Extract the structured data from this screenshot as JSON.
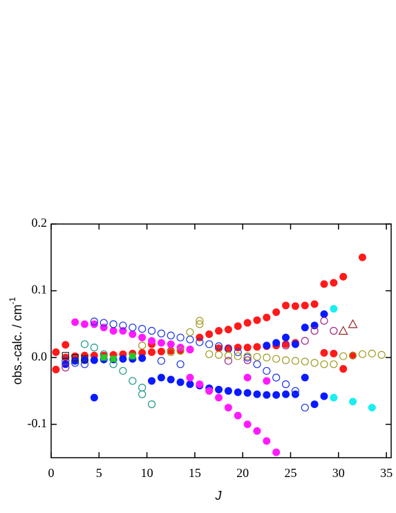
{
  "chart_data": {
    "type": "scatter",
    "x_label": "J",
    "y_label": "obs.-calc. / cm",
    "y_label_sup": "-1",
    "xlim": [
      0,
      35.5
    ],
    "ylim": [
      -0.15,
      0.2
    ],
    "xticks": [
      0,
      5,
      10,
      15,
      20,
      25,
      30,
      35
    ],
    "yticks": [
      -0.1,
      {
        "value": 0,
        "label": "0.0"
      },
      0.1,
      0.2
    ],
    "series": [
      {
        "color": "#ff1a1a",
        "marker": "filled",
        "x": [
          15.5,
          16.5,
          17.5,
          18.5,
          19.5,
          20.5,
          21.5,
          22.5,
          23.5,
          24.5,
          25.5,
          26.5,
          27.5,
          28.5,
          29.5,
          30.5,
          32.5,
          0.5,
          0.5,
          1.5,
          1.5,
          2.5,
          3.5,
          4.5,
          5.5,
          6.5,
          7.5,
          8.5,
          9.5,
          10.5,
          10.5,
          11.5,
          12.5,
          13.5,
          14.5,
          17.5,
          18.5,
          19.5,
          20.5,
          21.5,
          22.5,
          23.5,
          24.5,
          25.5,
          28.5,
          29.5,
          30.5,
          31.5
        ],
        "y": [
          0.03,
          0.035,
          0.04,
          0.042,
          0.047,
          0.052,
          0.056,
          0.06,
          0.068,
          0.078,
          0.077,
          0.078,
          0.08,
          0.11,
          0.112,
          0.121,
          0.15,
          0.008,
          -0.018,
          0.019,
          0.0,
          0.002,
          0.003,
          0.003,
          0.003,
          0.004,
          0.005,
          0.006,
          0.007,
          0.008,
          0.02,
          0.009,
          0.01,
          0.011,
          0.012,
          0.014,
          0.014,
          0.015,
          0.015,
          0.016,
          0.017,
          0.018,
          0.02,
          0.022,
          0.007,
          0.006,
          -0.017,
          0.003
        ]
      },
      {
        "color": "#0a1aff",
        "marker": "filled",
        "x": [
          4.5,
          10.5,
          11.5,
          12.5,
          13.5,
          14.5,
          15.5,
          16.5,
          17.5,
          18.5,
          19.5,
          20.5,
          21.5,
          22.5,
          23.5,
          24.5,
          25.5,
          26.5,
          27.5,
          28.5,
          22.5,
          23.5,
          24.5,
          25.5,
          26.5,
          27.5,
          28.5,
          1.5,
          2.5,
          3.5,
          4.5,
          5.5,
          6.5,
          7.5,
          8.5,
          9.5
        ],
        "y": [
          -0.06,
          -0.035,
          -0.03,
          -0.033,
          -0.037,
          -0.04,
          -0.042,
          -0.046,
          -0.048,
          -0.05,
          -0.052,
          -0.053,
          -0.055,
          -0.056,
          -0.056,
          -0.055,
          -0.055,
          -0.03,
          -0.07,
          -0.058,
          0.018,
          0.022,
          0.03,
          0.02,
          0.045,
          0.048,
          0.065,
          -0.01,
          -0.005,
          -0.004,
          -0.004,
          -0.003,
          -0.003,
          -0.002,
          -0.002,
          -0.001
        ]
      },
      {
        "color": "#ff1aff",
        "marker": "filled",
        "x": [
          2.5,
          3.5,
          4.5,
          5.5,
          6.5,
          7.5,
          8.5,
          9.5,
          10.5,
          11.5,
          12.5,
          13.5,
          14.5,
          14.5,
          15.5,
          16.5,
          17.5,
          18.5,
          19.5,
          20.5,
          21.5,
          22.5,
          23.5,
          20.5,
          22.5
        ],
        "y": [
          0.053,
          0.05,
          0.05,
          0.045,
          0.04,
          0.04,
          0.035,
          0.03,
          0.025,
          0.022,
          0.02,
          0.015,
          0.012,
          -0.03,
          -0.04,
          -0.05,
          -0.06,
          -0.075,
          -0.087,
          -0.1,
          -0.11,
          -0.125,
          -0.142,
          -0.03,
          -0.035
        ]
      },
      {
        "color": "#1a33e6",
        "marker": "open",
        "x": [
          4.5,
          5.5,
          6.5,
          7.5,
          8.5,
          9.5,
          10.5,
          11.5,
          12.5,
          13.5,
          14.5,
          15.5,
          16.5,
          17.5,
          18.5,
          19.5,
          20.5,
          21.5,
          22.5,
          23.5,
          24.5,
          25.5,
          26.5,
          1.5,
          2.5,
          3.5,
          11.5,
          13.5
        ],
        "y": [
          0.054,
          0.052,
          0.05,
          0.048,
          0.045,
          0.043,
          0.04,
          0.036,
          0.033,
          0.03,
          0.027,
          0.023,
          0.02,
          0.017,
          0.013,
          0.008,
          0.0,
          -0.01,
          -0.02,
          -0.03,
          -0.04,
          -0.05,
          -0.075,
          -0.005,
          -0.008,
          -0.01,
          -0.005,
          -0.01
        ]
      },
      {
        "color": "#1a9988",
        "marker": "open",
        "x": [
          3.5,
          4.5,
          7.5,
          8.5,
          9.5,
          9.5,
          10.5,
          5.5,
          6.5
        ],
        "y": [
          0.02,
          0.015,
          -0.02,
          -0.035,
          -0.045,
          -0.055,
          -0.07,
          0.005,
          -0.01
        ]
      },
      {
        "color": "#a09a20",
        "marker": "open",
        "x": [
          15.5,
          15.5,
          14.5,
          9.5,
          16.5,
          17.5,
          18.5,
          19.5,
          20.5,
          21.5,
          22.5,
          23.5,
          24.5,
          25.5,
          26.5,
          27.5,
          28.5,
          29.5,
          30.5,
          31.5,
          32.5,
          33.5,
          34.5,
          12.5,
          13.5
        ],
        "y": [
          0.055,
          0.05,
          0.038,
          0.018,
          0.005,
          0.004,
          0.003,
          0.002,
          0.002,
          0.001,
          0.0,
          -0.002,
          -0.004,
          -0.005,
          -0.006,
          -0.008,
          -0.01,
          -0.01,
          0.002,
          0.003,
          0.005,
          0.006,
          0.004,
          0.008,
          0.01
        ]
      },
      {
        "color": "#a0208a",
        "marker": "open",
        "x": [
          28.5,
          27.5,
          29.5,
          26.5,
          1.5,
          18.5,
          20.5,
          24.5
        ],
        "y": [
          0.055,
          0.04,
          0.04,
          0.025,
          -0.015,
          -0.005,
          -0.004,
          0.018
        ]
      },
      {
        "color": "#1aeef0",
        "marker": "filled",
        "x": [
          29.5,
          29.5,
          31.5,
          33.5
        ],
        "y": [
          0.073,
          -0.06,
          -0.066,
          -0.075
        ]
      },
      {
        "color": "#992222",
        "marker": "triangle",
        "x": [
          30.5,
          31.5
        ],
        "y": [
          0.04,
          0.05
        ]
      },
      {
        "color": "#22cc22",
        "marker": "square",
        "x": [
          5.5,
          6.5,
          8.5
        ],
        "y": [
          0.0,
          -0.002,
          0.002
        ]
      },
      {
        "color": "#222222",
        "marker": "opensquare",
        "x": [
          1.5,
          2.5,
          3.5
        ],
        "y": [
          0.003,
          0.0,
          -0.002
        ]
      }
    ]
  }
}
